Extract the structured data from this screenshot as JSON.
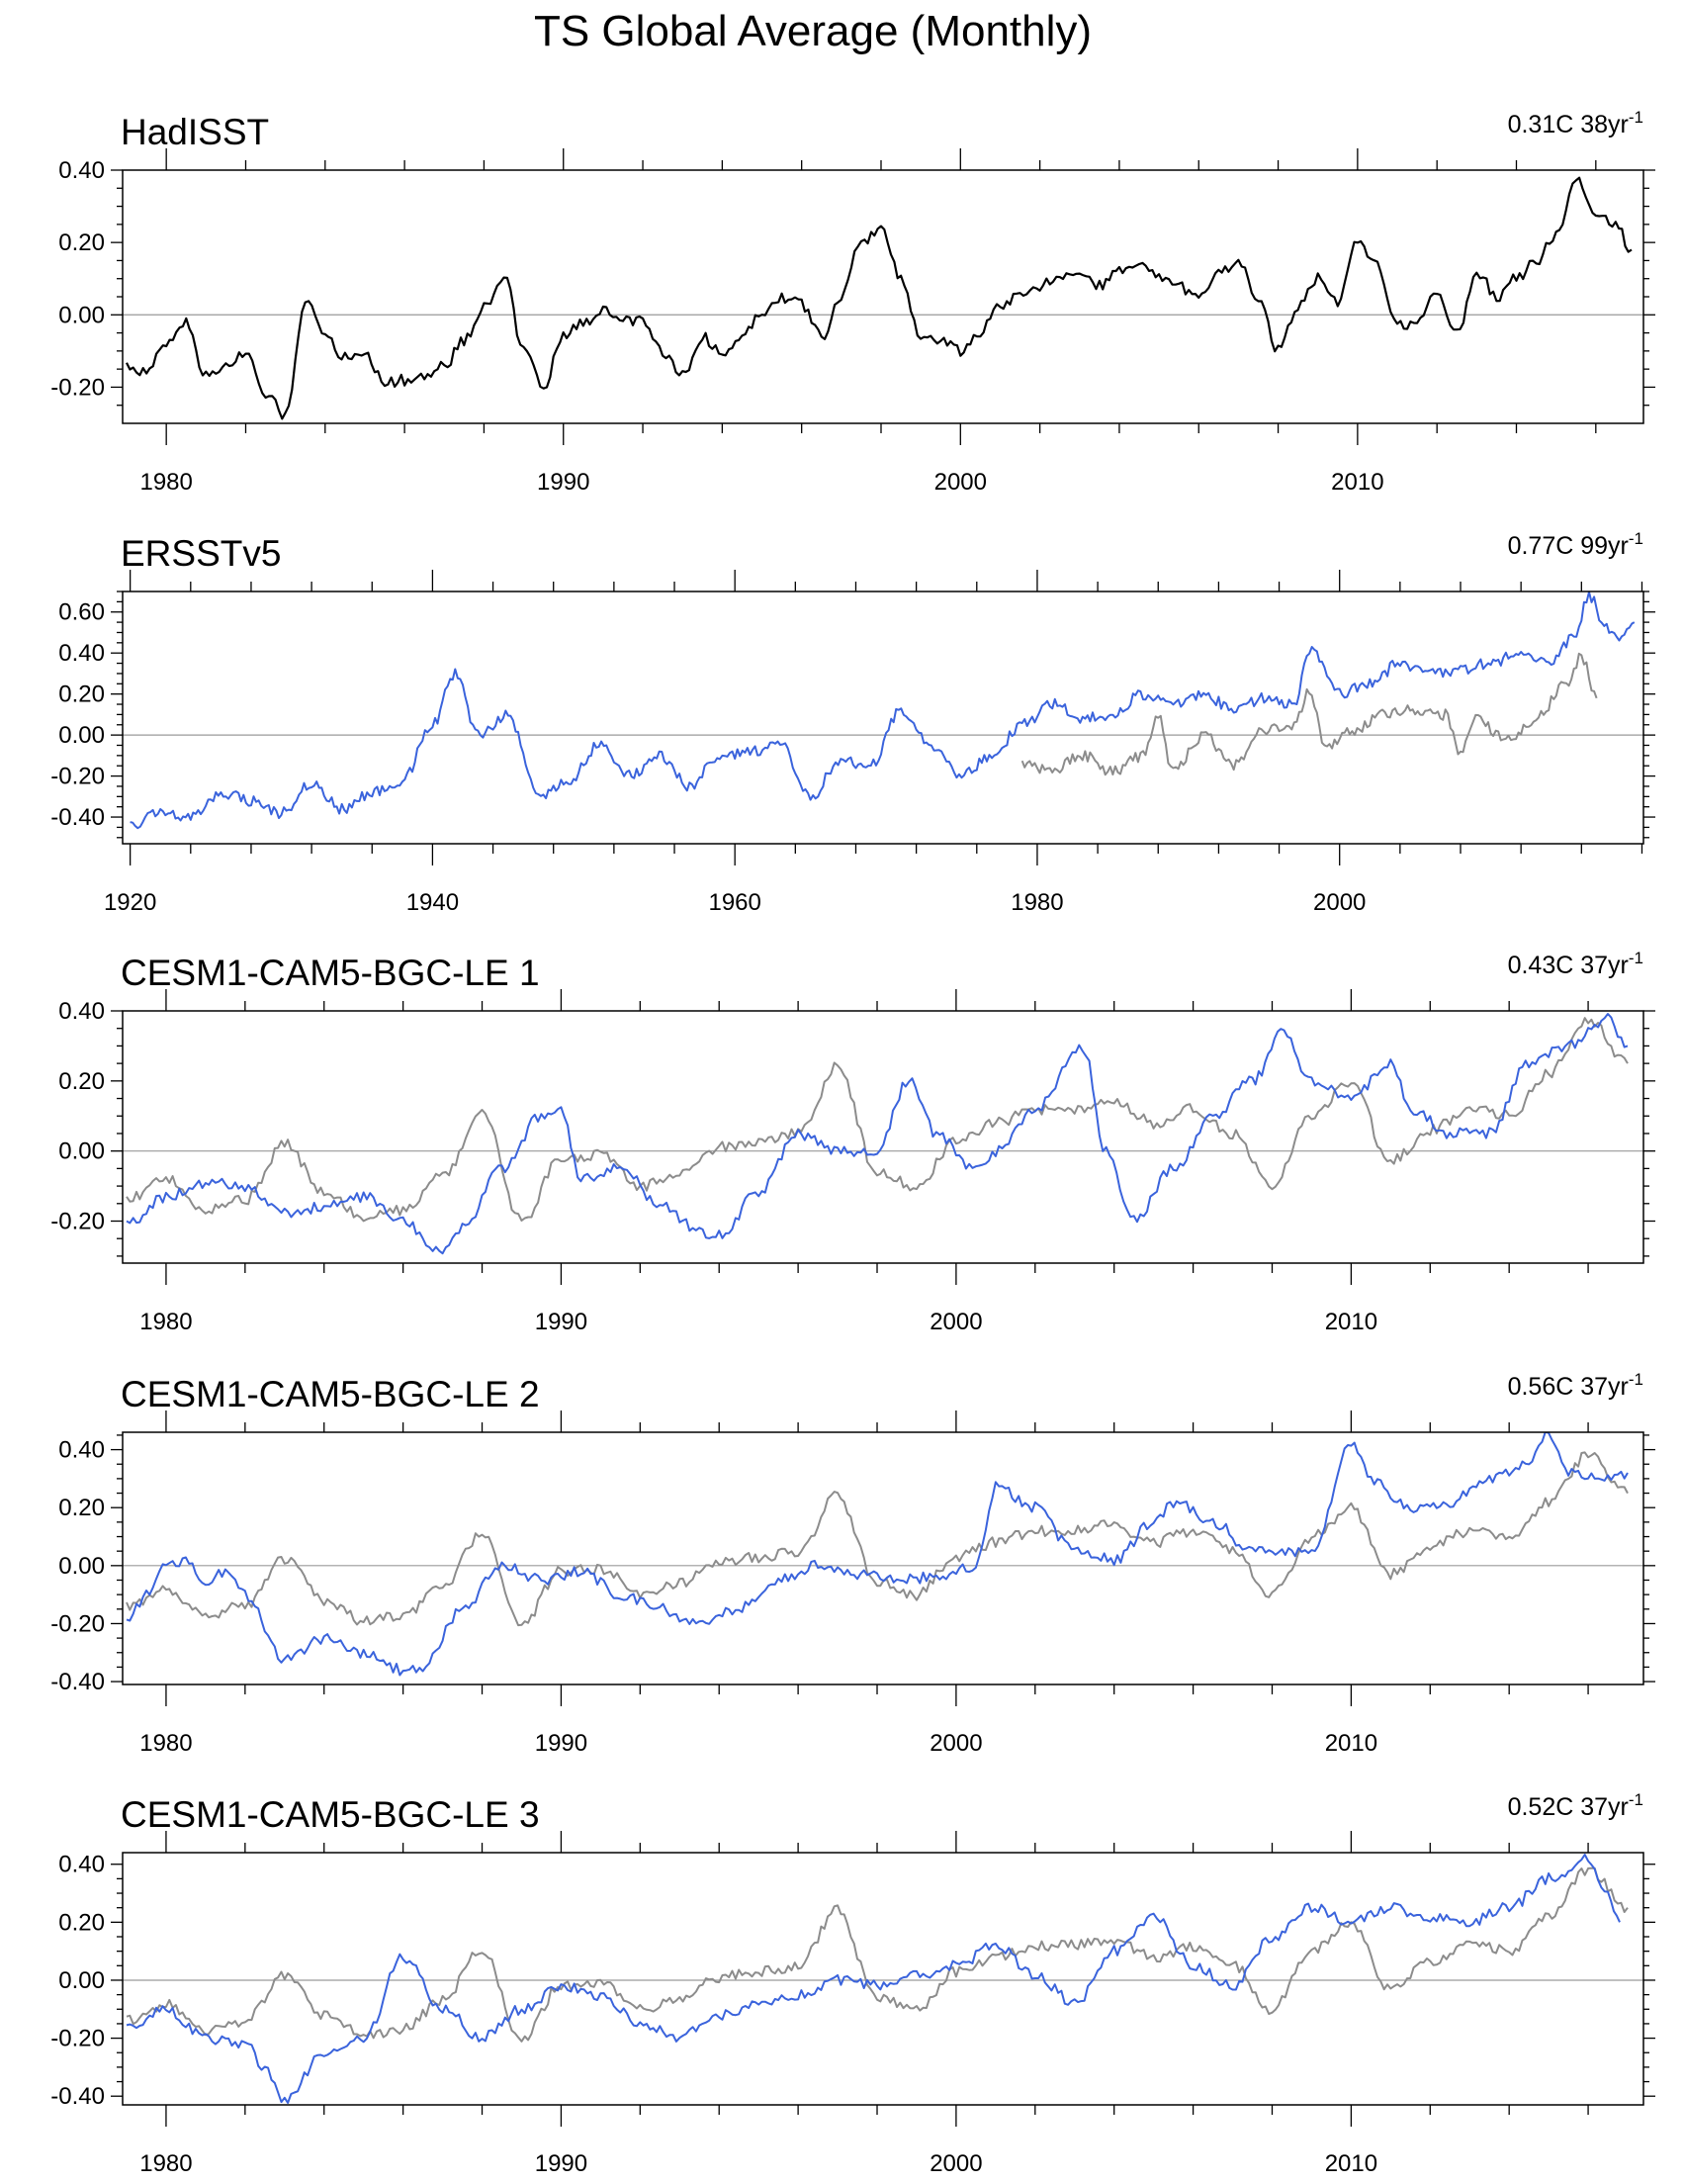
{
  "title": "TS Global Average (Monthly)",
  "colors": {
    "obs": "#000000",
    "model": "#3a63dc",
    "reference": "#8c8c8c",
    "zero": "#9a9a9a"
  },
  "chart_data": [
    {
      "type": "line",
      "title": "HadISST",
      "trend": "0.31C 38yr",
      "trend_sup": "-1",
      "xlim": [
        1978.9,
        2017.2
      ],
      "ylim": [
        -0.3,
        0.4
      ],
      "xticks": [
        1980,
        1990,
        2000,
        2010
      ],
      "xtick_labels": [
        "1980",
        "1990",
        "2000",
        "2010"
      ],
      "yticks": [
        -0.2,
        0.0,
        0.2,
        0.4
      ],
      "ytick_labels": [
        "-0.20",
        "0.00",
        "0.20",
        "0.40"
      ],
      "series": [
        {
          "name": "HadISST",
          "role": "obs",
          "x": [
            1979.0,
            1979.5,
            1980.0,
            1980.5,
            1981.0,
            1981.5,
            1982.0,
            1982.5,
            1983.0,
            1983.5,
            1984.0,
            1984.5,
            1985.0,
            1985.5,
            1986.0,
            1986.5,
            1987.0,
            1987.5,
            1988.0,
            1988.5,
            1989.0,
            1989.5,
            1990.0,
            1990.5,
            1991.0,
            1991.5,
            1992.0,
            1992.5,
            1993.0,
            1993.5,
            1994.0,
            1994.5,
            1995.0,
            1995.5,
            1996.0,
            1996.5,
            1997.0,
            1997.5,
            1998.0,
            1998.5,
            1999.0,
            1999.5,
            2000.0,
            2000.5,
            2001.0,
            2001.5,
            2002.0,
            2002.5,
            2003.0,
            2003.5,
            2004.0,
            2004.5,
            2005.0,
            2005.5,
            2006.0,
            2006.5,
            2007.0,
            2007.5,
            2008.0,
            2008.5,
            2009.0,
            2009.5,
            2010.0,
            2010.5,
            2011.0,
            2011.5,
            2012.0,
            2012.5,
            2013.0,
            2013.5,
            2014.0,
            2014.5,
            2015.0,
            2015.5,
            2016.0,
            2016.5,
            2016.9
          ],
          "values": [
            -0.14,
            -0.16,
            -0.08,
            -0.02,
            -0.17,
            -0.14,
            -0.11,
            -0.22,
            -0.28,
            0.04,
            -0.05,
            -0.12,
            -0.1,
            -0.19,
            -0.18,
            -0.17,
            -0.14,
            -0.07,
            0.02,
            0.11,
            -0.1,
            -0.2,
            -0.06,
            -0.02,
            0.01,
            -0.01,
            -0.02,
            -0.1,
            -0.17,
            -0.06,
            -0.11,
            -0.06,
            0.01,
            0.05,
            0.03,
            -0.06,
            0.05,
            0.2,
            0.24,
            0.1,
            -0.06,
            -0.07,
            -0.1,
            -0.05,
            0.03,
            0.05,
            0.08,
            0.1,
            0.12,
            0.08,
            0.12,
            0.14,
            0.1,
            0.08,
            0.04,
            0.12,
            0.14,
            0.05,
            -0.1,
            0.02,
            0.1,
            0.03,
            0.2,
            0.14,
            -0.03,
            -0.02,
            0.06,
            -0.05,
            0.12,
            0.05,
            0.1,
            0.15,
            0.22,
            0.38,
            0.28,
            0.25,
            0.18
          ]
        }
      ]
    },
    {
      "type": "line",
      "title": "ERSSTv5",
      "trend": "0.77C 99yr",
      "trend_sup": "-1",
      "xlim": [
        1919.5,
        2020.1
      ],
      "ylim": [
        -0.53,
        0.7
      ],
      "xticks": [
        1920,
        1940,
        1960,
        1980,
        2000
      ],
      "xtick_labels": [
        "1920",
        "1940",
        "1960",
        "1980",
        "2000"
      ],
      "yticks": [
        -0.4,
        -0.2,
        0.0,
        0.2,
        0.4,
        0.6
      ],
      "ytick_labels": [
        "-0.40",
        "-0.20",
        "0.00",
        "0.20",
        "0.40",
        "0.60"
      ],
      "series": [
        {
          "name": "ERSSTv5",
          "role": "model",
          "x": [
            1920,
            1922,
            1924,
            1926,
            1928,
            1930,
            1932,
            1934,
            1936,
            1938,
            1940,
            1941.5,
            1943,
            1945,
            1947,
            1949,
            1951,
            1953,
            1955,
            1957,
            1959,
            1961,
            1963,
            1965,
            1967,
            1969,
            1971,
            1973,
            1975,
            1977,
            1979,
            1981,
            1983,
            1985,
            1987,
            1989,
            1991,
            1993,
            1995,
            1997,
            1998,
            2000,
            2002,
            2004,
            2006,
            2008,
            2010,
            2012,
            2014,
            2015.5,
            2016.5,
            2017.5,
            2018.5,
            2019.5
          ],
          "values": [
            -0.44,
            -0.38,
            -0.4,
            -0.28,
            -0.32,
            -0.38,
            -0.24,
            -0.36,
            -0.28,
            -0.22,
            0.05,
            0.3,
            0.0,
            0.1,
            -0.3,
            -0.22,
            -0.05,
            -0.2,
            -0.1,
            -0.25,
            -0.1,
            -0.08,
            -0.05,
            -0.3,
            -0.12,
            -0.15,
            0.12,
            -0.05,
            -0.2,
            -0.1,
            0.05,
            0.15,
            0.08,
            0.1,
            0.2,
            0.15,
            0.2,
            0.12,
            0.18,
            0.15,
            0.42,
            0.2,
            0.25,
            0.35,
            0.3,
            0.32,
            0.35,
            0.4,
            0.35,
            0.48,
            0.68,
            0.55,
            0.45,
            0.55
          ]
        },
        {
          "name": "HadISST",
          "role": "reference",
          "x": [
            1979,
            1981,
            1983,
            1985,
            1987,
            1988,
            1989,
            1991,
            1993,
            1995,
            1997,
            1998,
            1999,
            2001,
            2003,
            2005,
            2007,
            2008,
            2009,
            2011,
            2013,
            2015,
            2016,
            2017
          ],
          "values": [
            -0.14,
            -0.17,
            -0.1,
            -0.18,
            -0.1,
            0.1,
            -0.18,
            0.0,
            -0.15,
            0.03,
            0.05,
            0.22,
            -0.05,
            0.02,
            0.1,
            0.12,
            0.1,
            -0.08,
            0.08,
            -0.02,
            0.08,
            0.25,
            0.38,
            0.18
          ]
        }
      ]
    },
    {
      "type": "line",
      "title": "CESM1-CAM5-BGC-LE 1",
      "trend": "0.43C 37yr",
      "trend_sup": "-1",
      "xlim": [
        1978.9,
        2017.4
      ],
      "ylim": [
        -0.32,
        0.4
      ],
      "xticks": [
        1980,
        1990,
        2000,
        2010
      ],
      "xtick_labels": [
        "1980",
        "1990",
        "2000",
        "2010"
      ],
      "yticks": [
        -0.2,
        0.0,
        0.2,
        0.4
      ],
      "ytick_labels": [
        "-0.20",
        "0.00",
        "0.20",
        "0.40"
      ],
      "series": [
        {
          "name": "CESM1-CAM5-BGC-LE 1",
          "role": "model",
          "x": [
            1979.0,
            1980.0,
            1981.0,
            1982.0,
            1983.0,
            1984.0,
            1985.0,
            1986.0,
            1987.0,
            1987.5,
            1988.5,
            1989.5,
            1990.0,
            1990.5,
            1991.5,
            1992.5,
            1993.5,
            1994.0,
            1995.0,
            1996.0,
            1997.0,
            1998.0,
            1998.8,
            1999.5,
            2000.5,
            2001.0,
            2002.0,
            2003.2,
            2003.8,
            2004.5,
            2005.5,
            2006.5,
            2007.5,
            2008.3,
            2009.0,
            2010.0,
            2011.0,
            2011.5,
            2012.5,
            2013.5,
            2014.5,
            2015.5,
            2016.5,
            2017.0
          ],
          "values": [
            -0.21,
            -0.13,
            -0.09,
            -0.1,
            -0.18,
            -0.16,
            -0.13,
            -0.2,
            -0.29,
            -0.22,
            -0.05,
            0.1,
            0.11,
            -0.08,
            -0.05,
            -0.15,
            -0.23,
            -0.24,
            -0.12,
            0.05,
            0.0,
            0.0,
            0.2,
            0.05,
            -0.05,
            0.0,
            0.12,
            0.3,
            0.0,
            -0.2,
            -0.05,
            0.1,
            0.2,
            0.34,
            0.2,
            0.15,
            0.25,
            0.12,
            0.05,
            0.05,
            0.25,
            0.3,
            0.38,
            0.3
          ]
        },
        {
          "name": "HadISST",
          "role": "reference",
          "x": [
            1979,
            1980,
            1981,
            1982,
            1983,
            1984,
            1985,
            1986,
            1987,
            1988,
            1989,
            1990,
            1991,
            1992,
            1993,
            1994,
            1995,
            1996,
            1997,
            1998,
            1999,
            2000,
            2001,
            2002,
            2003,
            2004,
            2005,
            2006,
            2007,
            2008,
            2009,
            2010,
            2011,
            2012,
            2013,
            2014,
            2015,
            2016,
            2017
          ],
          "values": [
            -0.14,
            -0.08,
            -0.17,
            -0.14,
            0.02,
            -0.12,
            -0.19,
            -0.17,
            -0.07,
            0.11,
            -0.2,
            -0.02,
            -0.01,
            -0.1,
            -0.06,
            0.01,
            0.03,
            0.05,
            0.24,
            -0.06,
            -0.1,
            0.03,
            0.08,
            0.12,
            0.12,
            0.14,
            0.08,
            0.12,
            0.05,
            -0.1,
            0.1,
            0.2,
            -0.03,
            0.06,
            0.12,
            0.1,
            0.22,
            0.38,
            0.25
          ]
        }
      ]
    },
    {
      "type": "line",
      "title": "CESM1-CAM5-BGC-LE 2",
      "trend": "0.56C 37yr",
      "trend_sup": "-1",
      "xlim": [
        1978.9,
        2017.4
      ],
      "ylim": [
        -0.41,
        0.46
      ],
      "xticks": [
        1980,
        1990,
        2000,
        2010
      ],
      "xtick_labels": [
        "1980",
        "1990",
        "2000",
        "2010"
      ],
      "yticks": [
        -0.4,
        -0.2,
        0.0,
        0.2,
        0.4
      ],
      "ytick_labels": [
        "-0.40",
        "-0.20",
        "0.00",
        "0.20",
        "0.40"
      ],
      "series": [
        {
          "name": "CESM1-CAM5-BGC-LE 2",
          "role": "model",
          "x": [
            1979.0,
            1979.5,
            1980.0,
            1980.5,
            1981.0,
            1981.5,
            1982.0,
            1983.0,
            1984.0,
            1985.0,
            1986.0,
            1986.5,
            1987.5,
            1988.5,
            1989.5,
            1990.5,
            1991.5,
            1992.5,
            1993.5,
            1994.5,
            1995.5,
            1996.5,
            1997.5,
            1998.5,
            1999.5,
            2000.5,
            2001.0,
            2002.0,
            2003.0,
            2004.0,
            2005.0,
            2005.5,
            2006.5,
            2007.5,
            2008.5,
            2009.0,
            2010.0,
            2010.5,
            2011.5,
            2012.5,
            2013.5,
            2014.5,
            2015.0,
            2015.5,
            2016.5,
            2017.0
          ],
          "values": [
            -0.2,
            -0.1,
            0.0,
            0.02,
            -0.05,
            -0.02,
            -0.1,
            -0.32,
            -0.25,
            -0.3,
            -0.36,
            -0.35,
            -0.15,
            0.0,
            -0.05,
            -0.02,
            -0.1,
            -0.15,
            -0.2,
            -0.15,
            -0.05,
            0.0,
            -0.03,
            -0.05,
            -0.04,
            0.0,
            0.27,
            0.2,
            0.05,
            0.02,
            0.15,
            0.22,
            0.15,
            0.05,
            0.05,
            0.05,
            0.42,
            0.3,
            0.2,
            0.22,
            0.3,
            0.35,
            0.45,
            0.32,
            0.3,
            0.32
          ]
        },
        {
          "name": "HadISST",
          "role": "reference",
          "x": [
            1979,
            1980,
            1981,
            1982,
            1983,
            1984,
            1985,
            1986,
            1987,
            1988,
            1989,
            1990,
            1991,
            1992,
            1993,
            1994,
            1995,
            1996,
            1997,
            1998,
            1999,
            2000,
            2001,
            2002,
            2003,
            2004,
            2005,
            2006,
            2007,
            2008,
            2009,
            2010,
            2011,
            2012,
            2013,
            2014,
            2015,
            2016,
            2017
          ],
          "values": [
            -0.14,
            -0.08,
            -0.17,
            -0.14,
            0.02,
            -0.12,
            -0.19,
            -0.17,
            -0.07,
            0.11,
            -0.2,
            -0.02,
            -0.01,
            -0.1,
            -0.06,
            0.01,
            0.03,
            0.05,
            0.24,
            -0.06,
            -0.1,
            0.03,
            0.08,
            0.12,
            0.12,
            0.14,
            0.08,
            0.12,
            0.05,
            -0.1,
            0.1,
            0.2,
            -0.03,
            0.06,
            0.12,
            0.1,
            0.22,
            0.38,
            0.25
          ]
        }
      ]
    },
    {
      "type": "line",
      "title": "CESM1-CAM5-BGC-LE 3",
      "trend": "0.52C 37yr",
      "trend_sup": "-1",
      "xlim": [
        1978.9,
        2017.4
      ],
      "ylim": [
        -0.43,
        0.44
      ],
      "xticks": [
        1980,
        1990,
        2000,
        2010
      ],
      "xtick_labels": [
        "1980",
        "1990",
        "2000",
        "2010"
      ],
      "yticks": [
        -0.4,
        -0.2,
        0.0,
        0.2,
        0.4
      ],
      "ytick_labels": [
        "-0.40",
        "-0.20",
        "0.00",
        "0.20",
        "0.40"
      ],
      "series": [
        {
          "name": "CESM1-CAM5-BGC-LE 3",
          "role": "model",
          "x": [
            1979.0,
            1980.0,
            1981.0,
            1982.0,
            1982.5,
            1983.0,
            1984.0,
            1985.0,
            1986.0,
            1987.0,
            1988.0,
            1989.0,
            1990.0,
            1991.0,
            1992.0,
            1993.0,
            1994.0,
            1995.0,
            1996.0,
            1997.0,
            1998.0,
            1999.0,
            2000.0,
            2001.0,
            2002.0,
            2003.0,
            2004.0,
            2005.0,
            2006.0,
            2007.0,
            2008.0,
            2009.0,
            2010.0,
            2011.0,
            2012.0,
            2013.0,
            2014.0,
            2015.0,
            2016.0,
            2016.5,
            2016.8
          ],
          "values": [
            -0.17,
            -0.1,
            -0.2,
            -0.22,
            -0.3,
            -0.42,
            -0.25,
            -0.2,
            0.08,
            -0.1,
            -0.2,
            -0.1,
            -0.02,
            -0.05,
            -0.15,
            -0.2,
            -0.12,
            -0.08,
            -0.05,
            0.0,
            -0.02,
            0.02,
            0.05,
            0.12,
            0.02,
            -0.08,
            0.1,
            0.22,
            0.05,
            -0.02,
            0.15,
            0.25,
            0.2,
            0.25,
            0.22,
            0.2,
            0.25,
            0.35,
            0.42,
            0.3,
            0.2
          ]
        },
        {
          "name": "HadISST",
          "role": "reference",
          "x": [
            1979,
            1980,
            1981,
            1982,
            1983,
            1984,
            1985,
            1986,
            1987,
            1988,
            1989,
            1990,
            1991,
            1992,
            1993,
            1994,
            1995,
            1996,
            1997,
            1998,
            1999,
            2000,
            2001,
            2002,
            2003,
            2004,
            2005,
            2006,
            2007,
            2008,
            2009,
            2010,
            2011,
            2012,
            2013,
            2014,
            2015,
            2016,
            2017
          ],
          "values": [
            -0.14,
            -0.08,
            -0.17,
            -0.14,
            0.02,
            -0.12,
            -0.19,
            -0.17,
            -0.07,
            0.11,
            -0.2,
            -0.02,
            -0.01,
            -0.1,
            -0.06,
            0.01,
            0.03,
            0.05,
            0.24,
            -0.06,
            -0.1,
            0.03,
            0.08,
            0.12,
            0.12,
            0.14,
            0.08,
            0.12,
            0.05,
            -0.1,
            0.1,
            0.2,
            -0.03,
            0.06,
            0.12,
            0.1,
            0.22,
            0.38,
            0.25
          ]
        }
      ]
    }
  ]
}
